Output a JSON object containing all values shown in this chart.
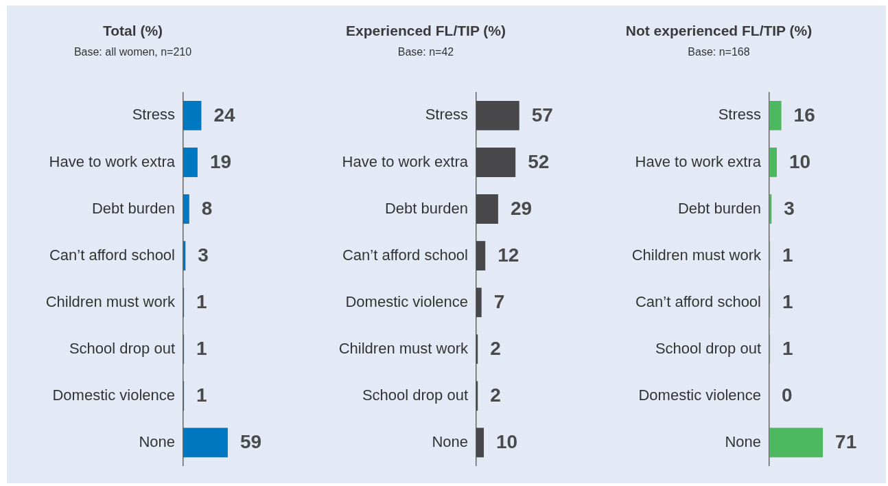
{
  "chart_data": [
    {
      "type": "bar",
      "orientation": "horizontal",
      "title": "Total (%)",
      "subtitle": "Base: all women, n=210",
      "categories": [
        "Stress",
        "Have to work extra",
        "Debt burden",
        "Can’t afford school",
        "Children must work",
        "School drop out",
        "Domestic violence",
        "None"
      ],
      "values": [
        24,
        19,
        8,
        3,
        1,
        1,
        1,
        59
      ],
      "color": "#0077c1",
      "tick_labels": "y",
      "data_labels": true
    },
    {
      "type": "bar",
      "orientation": "horizontal",
      "title": "Experienced FL/TIP (%)",
      "subtitle": "Base: n=42",
      "categories": [
        "Stress",
        "Have to work extra",
        "Debt burden",
        "Can’t afford school",
        "Domestic violence",
        "Children must work",
        "School drop out",
        "None"
      ],
      "values": [
        57,
        52,
        29,
        12,
        7,
        2,
        2,
        10
      ],
      "color": "#48484b",
      "tick_labels": "y",
      "data_labels": true
    },
    {
      "type": "bar",
      "orientation": "horizontal",
      "title": "Not experienced FL/TIP (%)",
      "subtitle": "Base: n=168",
      "categories": [
        "Stress",
        "Have to work extra",
        "Debt burden",
        "Children must work",
        "Can’t afford school",
        "School drop out",
        "Domestic violence",
        "None"
      ],
      "values": [
        16,
        10,
        3,
        1,
        1,
        1,
        0,
        71
      ],
      "color": "#4cb85f",
      "tick_labels": "y",
      "data_labels": true
    }
  ]
}
